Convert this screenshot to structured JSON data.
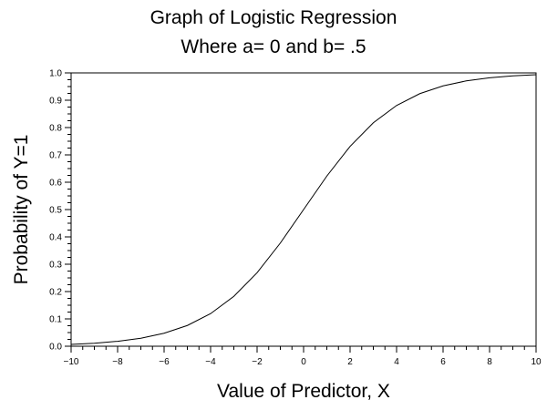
{
  "chart_data": {
    "type": "line",
    "title_line1": "Graph of Logistic Regression",
    "title_line2": "Where a= 0 and b= .5",
    "xlabel": "Value of Predictor, X",
    "ylabel": "Probability of Y=1",
    "xlim": [
      -10,
      10
    ],
    "ylim": [
      0,
      1
    ],
    "x_ticks": [
      -10,
      -8,
      -6,
      -4,
      -2,
      0,
      2,
      4,
      6,
      8,
      10
    ],
    "x_tick_labels": [
      "−10",
      "−8",
      "−6",
      "−4",
      "−2",
      "0",
      "2",
      "4",
      "6",
      "8",
      "10"
    ],
    "y_ticks": [
      0,
      0.1,
      0.2,
      0.3,
      0.4,
      0.5,
      0.6,
      0.7,
      0.8,
      0.9,
      1
    ],
    "y_tick_labels": [
      "0.0",
      "0.1",
      "0.2",
      "0.3",
      "0.4",
      "0.5",
      "0.6",
      "0.7",
      "0.8",
      "0.9",
      "1.0"
    ],
    "grid": false,
    "series": [
      {
        "x": [
          -10,
          -9,
          -8,
          -7,
          -6,
          -5,
          -4,
          -3,
          -2,
          -1,
          0,
          1,
          2,
          3,
          4,
          5,
          6,
          7,
          8,
          9,
          10
        ],
        "values": [
          0.0067,
          0.011,
          0.018,
          0.0293,
          0.0474,
          0.0759,
          0.1192,
          0.1824,
          0.2689,
          0.3775,
          0.5,
          0.6225,
          0.7311,
          0.8176,
          0.8808,
          0.9241,
          0.9526,
          0.9707,
          0.982,
          0.989,
          0.9933
        ]
      }
    ]
  }
}
